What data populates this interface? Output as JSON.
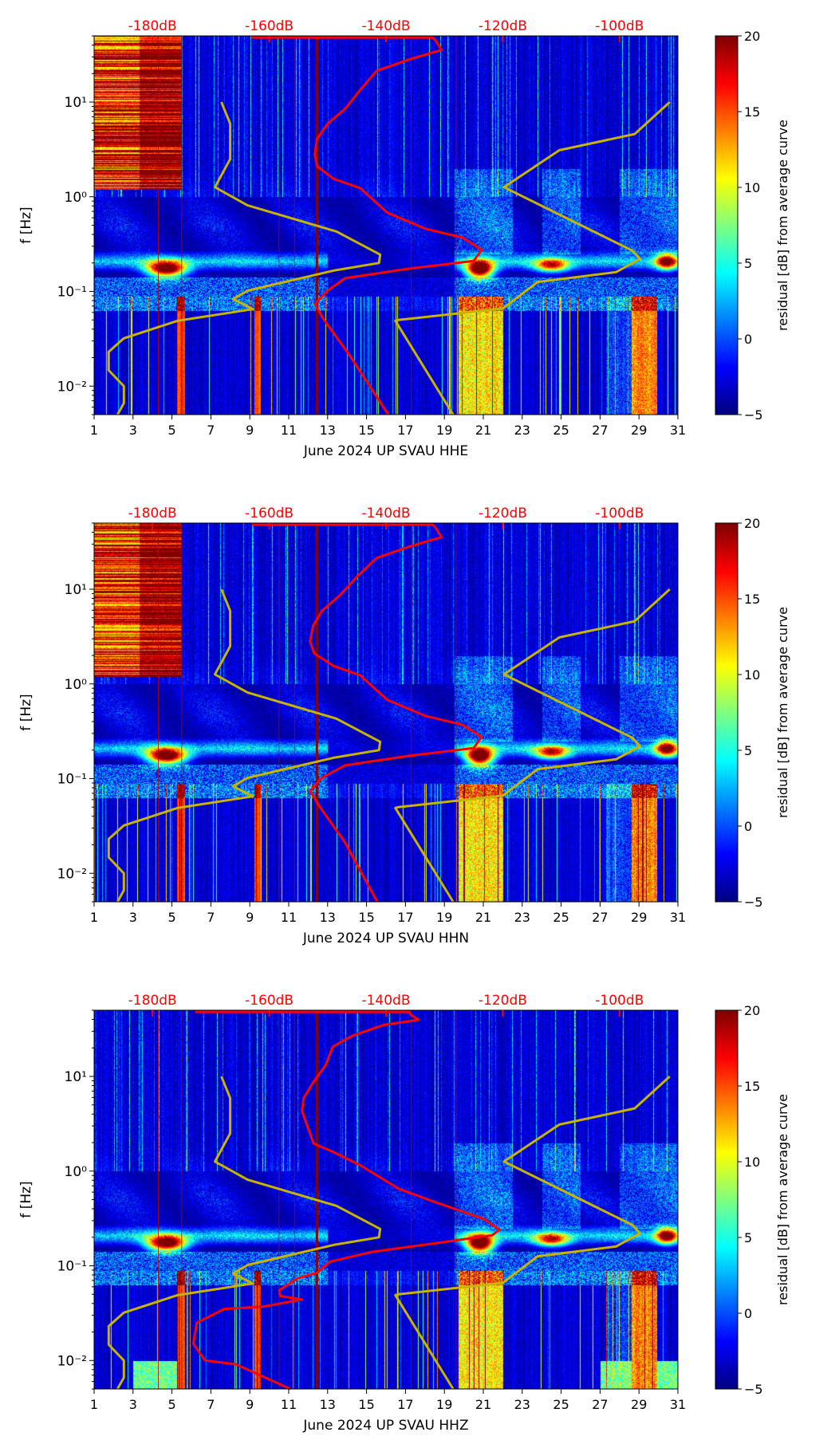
{
  "chart_data": [
    {
      "type": "heatmap",
      "title": "June 2024 UP SVAU  HHE",
      "xlabel": "June 2024 UP SVAU  HHE",
      "ylabel": "f [Hz]",
      "xlim": [
        1,
        31
      ],
      "x_ticks": [
        1,
        3,
        5,
        7,
        9,
        11,
        13,
        15,
        17,
        19,
        21,
        23,
        25,
        27,
        29,
        31
      ],
      "ylim_hz": [
        0.005,
        50
      ],
      "y_ticks": [
        0.01,
        0.1,
        1,
        10
      ],
      "y_tick_labels": [
        "10⁻²",
        "10⁻¹",
        "10⁰",
        "10¹"
      ],
      "top_axis": {
        "range_db": [
          -190,
          -90
        ],
        "values": [
          -180,
          -160,
          -140,
          -120,
          -100
        ],
        "labels": [
          "-180dB",
          "-160dB",
          "-140dB",
          "-120dB",
          "-100dB"
        ],
        "color": "#ff0000"
      },
      "colorbar": {
        "label": "residual [dB] from average curve",
        "range": [
          -5,
          20
        ],
        "ticks": [
          -5,
          0,
          5,
          10,
          15,
          20
        ],
        "tick_labels": [
          "−5",
          "0",
          "5",
          "10",
          "15",
          "20"
        ],
        "colormap": "jet"
      },
      "marker_days": [
        4.3,
        5.5,
        10.5,
        11.3,
        12.45,
        17.3,
        19.6
      ],
      "high_freq_noise_days": [
        1,
        5.5
      ],
      "low_band_days": [],
      "psd_curve": {
        "color": "#ff0000",
        "points_db_hz": [
          [
            -163,
            48
          ],
          [
            -132,
            48
          ],
          [
            -131.5,
            44.7
          ],
          [
            -130.5,
            35.5
          ],
          [
            -136,
            28.2
          ],
          [
            -141.6,
            21.4
          ],
          [
            -144.4,
            13.5
          ],
          [
            -147,
            8.5
          ],
          [
            -150,
            5.9
          ],
          [
            -151.8,
            4.1
          ],
          [
            -152.2,
            2.8
          ],
          [
            -151.8,
            2.1
          ],
          [
            -149,
            1.55
          ],
          [
            -144.4,
            1.23
          ],
          [
            -139.8,
            0.68
          ],
          [
            -133.3,
            0.46
          ],
          [
            -126.9,
            0.37
          ],
          [
            -123.6,
            0.275
          ],
          [
            -125,
            0.21
          ],
          [
            -136,
            0.174
          ],
          [
            -147,
            0.138
          ],
          [
            -150,
            0.102
          ],
          [
            -152.2,
            0.074
          ],
          [
            -150.8,
            0.052
          ],
          [
            -146.2,
            0.021
          ],
          [
            -139.6,
            0.005
          ]
        ]
      },
      "noise_model_low": {
        "color": "#c8b400",
        "points_db_hz": [
          [
            -168.2,
            10
          ],
          [
            -166.7,
            5.9
          ],
          [
            -166.7,
            2.5
          ],
          [
            -169.3,
            1.26
          ],
          [
            -163.7,
            0.81
          ],
          [
            -148.5,
            0.43
          ],
          [
            -141,
            0.245
          ],
          [
            -141.2,
            0.2
          ],
          [
            -149,
            0.166
          ],
          [
            -163.7,
            0.102
          ],
          [
            -166.2,
            0.083
          ],
          [
            -162.8,
            0.065
          ],
          [
            -175.7,
            0.049
          ],
          [
            -184.9,
            0.032
          ],
          [
            -187.5,
            0.023
          ],
          [
            -187.5,
            0.0147
          ],
          [
            -184.9,
            0.01
          ],
          [
            -184.9,
            0.0066
          ],
          [
            -186,
            0.005
          ]
        ]
      },
      "noise_model_high": {
        "color": "#c8b400",
        "points_db_hz": [
          [
            -91.4,
            10
          ],
          [
            -97.4,
            4.6
          ],
          [
            -110.3,
            3.1
          ],
          [
            -119.8,
            1.26
          ],
          [
            -97.8,
            0.27
          ],
          [
            -96.5,
            0.22
          ],
          [
            -100.6,
            0.16
          ],
          [
            -114,
            0.126
          ],
          [
            -120,
            0.066
          ],
          [
            -137.9,
            0.05
          ],
          [
            -138.4,
            0.049
          ],
          [
            -128.5,
            0.005
          ]
        ]
      }
    },
    {
      "type": "heatmap",
      "title": "June 2024 UP SVAU  HHN",
      "xlabel": "June 2024 UP SVAU  HHN",
      "ylabel": "f [Hz]",
      "xlim": [
        1,
        31
      ],
      "x_ticks": [
        1,
        3,
        5,
        7,
        9,
        11,
        13,
        15,
        17,
        19,
        21,
        23,
        25,
        27,
        29,
        31
      ],
      "ylim_hz": [
        0.005,
        50
      ],
      "y_ticks": [
        0.01,
        0.1,
        1,
        10
      ],
      "y_tick_labels": [
        "10⁻²",
        "10⁻¹",
        "10⁰",
        "10¹"
      ],
      "top_axis": {
        "range_db": [
          -190,
          -90
        ],
        "values": [
          -180,
          -160,
          -140,
          -120,
          -100
        ],
        "labels": [
          "-180dB",
          "-160dB",
          "-140dB",
          "-120dB",
          "-100dB"
        ],
        "color": "#ff0000"
      },
      "colorbar": {
        "label": "residual [dB] from average curve",
        "range": [
          -5,
          20
        ],
        "ticks": [
          -5,
          0,
          5,
          10,
          15,
          20
        ],
        "tick_labels": [
          "−5",
          "0",
          "5",
          "10",
          "15",
          "20"
        ],
        "colormap": "jet"
      },
      "marker_days": [
        4.3,
        5.5,
        10.5,
        11.3,
        12.45,
        17.3,
        19.6
      ],
      "high_freq_noise_days": [
        1,
        5.5
      ],
      "low_band_days": [],
      "psd_curve": {
        "color": "#ff0000",
        "points_db_hz": [
          [
            -163,
            48
          ],
          [
            -132,
            48
          ],
          [
            -131.5,
            44.7
          ],
          [
            -130.5,
            35.5
          ],
          [
            -136,
            28.2
          ],
          [
            -141.6,
            21.4
          ],
          [
            -145,
            13.5
          ],
          [
            -148,
            8.5
          ],
          [
            -151,
            5.9
          ],
          [
            -152.5,
            4.1
          ],
          [
            -153,
            2.8
          ],
          [
            -152.3,
            2.1
          ],
          [
            -149,
            1.55
          ],
          [
            -144.4,
            1.23
          ],
          [
            -139.8,
            0.68
          ],
          [
            -133.3,
            0.46
          ],
          [
            -126.9,
            0.37
          ],
          [
            -123.6,
            0.275
          ],
          [
            -125,
            0.21
          ],
          [
            -136,
            0.174
          ],
          [
            -147,
            0.138
          ],
          [
            -151,
            0.102
          ],
          [
            -153,
            0.074
          ],
          [
            -151.5,
            0.052
          ],
          [
            -147,
            0.021
          ],
          [
            -141.5,
            0.005
          ]
        ]
      },
      "noise_model_low": {
        "color": "#c8b400",
        "points_db_hz": [
          [
            -168.2,
            10
          ],
          [
            -166.7,
            5.9
          ],
          [
            -166.7,
            2.5
          ],
          [
            -169.3,
            1.26
          ],
          [
            -163.7,
            0.81
          ],
          [
            -148.5,
            0.43
          ],
          [
            -141,
            0.245
          ],
          [
            -141.2,
            0.2
          ],
          [
            -149,
            0.166
          ],
          [
            -163.7,
            0.102
          ],
          [
            -166.2,
            0.083
          ],
          [
            -162.8,
            0.065
          ],
          [
            -175.7,
            0.049
          ],
          [
            -184.9,
            0.032
          ],
          [
            -187.5,
            0.023
          ],
          [
            -187.5,
            0.0147
          ],
          [
            -184.9,
            0.01
          ],
          [
            -184.9,
            0.0066
          ],
          [
            -186,
            0.005
          ]
        ]
      },
      "noise_model_high": {
        "color": "#c8b400",
        "points_db_hz": [
          [
            -91.4,
            10
          ],
          [
            -97.4,
            4.6
          ],
          [
            -110.3,
            3.1
          ],
          [
            -119.8,
            1.26
          ],
          [
            -97.8,
            0.27
          ],
          [
            -96.5,
            0.22
          ],
          [
            -100.6,
            0.16
          ],
          [
            -114,
            0.126
          ],
          [
            -120,
            0.066
          ],
          [
            -137.9,
            0.05
          ],
          [
            -138.4,
            0.049
          ],
          [
            -128.5,
            0.005
          ]
        ]
      }
    },
    {
      "type": "heatmap",
      "title": "June 2024 UP SVAU  HHZ",
      "xlabel": "June 2024 UP SVAU  HHZ",
      "ylabel": "f [Hz]",
      "xlim": [
        1,
        31
      ],
      "x_ticks": [
        1,
        3,
        5,
        7,
        9,
        11,
        13,
        15,
        17,
        19,
        21,
        23,
        25,
        27,
        29,
        31
      ],
      "ylim_hz": [
        0.005,
        50
      ],
      "y_ticks": [
        0.01,
        0.1,
        1,
        10
      ],
      "y_tick_labels": [
        "10⁻²",
        "10⁻¹",
        "10⁰",
        "10¹"
      ],
      "top_axis": {
        "range_db": [
          -190,
          -90
        ],
        "values": [
          -180,
          -160,
          -140,
          -120,
          -100
        ],
        "labels": [
          "-180dB",
          "-160dB",
          "-140dB",
          "-120dB",
          "-100dB"
        ],
        "color": "#ff0000"
      },
      "colorbar": {
        "label": "residual [dB] from average curve",
        "range": [
          -5,
          20
        ],
        "ticks": [
          -5,
          0,
          5,
          10,
          15,
          20
        ],
        "tick_labels": [
          "−5",
          "0",
          "5",
          "10",
          "15",
          "20"
        ],
        "colormap": "jet"
      },
      "marker_days": [
        4.3,
        5.5,
        10.5,
        11.3,
        12.45,
        17.3,
        19.6
      ],
      "high_freq_noise_days": [],
      "low_band_days": [
        [
          3,
          5.5
        ],
        [
          19.7,
          22
        ],
        [
          27,
          31
        ]
      ],
      "psd_curve": {
        "color": "#ff0000",
        "points_db_hz": [
          [
            -172.7,
            48
          ],
          [
            -136,
            48
          ],
          [
            -135.8,
            45
          ],
          [
            -134.4,
            39.6
          ],
          [
            -140.4,
            35
          ],
          [
            -145.8,
            26.8
          ],
          [
            -149.1,
            20.6
          ],
          [
            -150.4,
            13
          ],
          [
            -152.4,
            8.8
          ],
          [
            -154.1,
            5.9
          ],
          [
            -154.4,
            4.3
          ],
          [
            -153.4,
            2.9
          ],
          [
            -152.4,
            1.95
          ],
          [
            -149.1,
            1.6
          ],
          [
            -144.4,
            1.15
          ],
          [
            -137.8,
            0.65
          ],
          [
            -132.4,
            0.49
          ],
          [
            -123.1,
            0.31
          ],
          [
            -120.6,
            0.24
          ],
          [
            -121.8,
            0.21
          ],
          [
            -132.4,
            0.17
          ],
          [
            -142.4,
            0.14
          ],
          [
            -149.7,
            0.11
          ],
          [
            -151.7,
            0.085
          ],
          [
            -155.1,
            0.074
          ],
          [
            -158.3,
            0.055
          ],
          [
            -158.1,
            0.048
          ],
          [
            -154.4,
            0.044
          ],
          [
            -161.1,
            0.037
          ],
          [
            -167.7,
            0.035
          ],
          [
            -172.4,
            0.025
          ],
          [
            -173,
            0.015
          ],
          [
            -171,
            0.01
          ],
          [
            -165.7,
            0.0091
          ],
          [
            -156.4,
            0.005
          ]
        ]
      },
      "noise_model_low": {
        "color": "#c8b400",
        "points_db_hz": [
          [
            -168.2,
            10
          ],
          [
            -166.7,
            5.9
          ],
          [
            -166.7,
            2.5
          ],
          [
            -169.3,
            1.26
          ],
          [
            -163.7,
            0.81
          ],
          [
            -148.5,
            0.43
          ],
          [
            -141,
            0.245
          ],
          [
            -141.2,
            0.2
          ],
          [
            -149,
            0.166
          ],
          [
            -163.7,
            0.102
          ],
          [
            -166.2,
            0.083
          ],
          [
            -162.8,
            0.065
          ],
          [
            -175.7,
            0.049
          ],
          [
            -184.9,
            0.032
          ],
          [
            -187.5,
            0.023
          ],
          [
            -187.5,
            0.0147
          ],
          [
            -184.9,
            0.01
          ],
          [
            -184.9,
            0.0066
          ],
          [
            -186,
            0.005
          ]
        ]
      },
      "noise_model_high": {
        "color": "#c8b400",
        "points_db_hz": [
          [
            -91.4,
            10
          ],
          [
            -97.4,
            4.6
          ],
          [
            -110.3,
            3.1
          ],
          [
            -119.8,
            1.26
          ],
          [
            -97.8,
            0.27
          ],
          [
            -96.5,
            0.22
          ],
          [
            -100.6,
            0.16
          ],
          [
            -114,
            0.126
          ],
          [
            -120,
            0.066
          ],
          [
            -137.9,
            0.05
          ],
          [
            -138.4,
            0.049
          ],
          [
            -128.5,
            0.005
          ]
        ]
      }
    }
  ]
}
